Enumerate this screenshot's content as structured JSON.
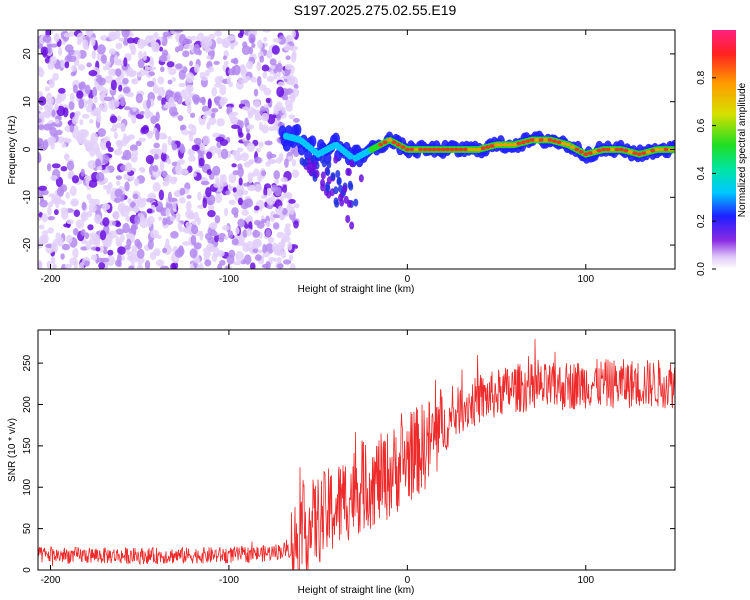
{
  "title": "S197.2025.275.02.55.E19",
  "colors": {
    "spectrogram_dots": "#8a2be2",
    "snr_line": "#ee2a2a",
    "axes": "#000000"
  },
  "chart_data": [
    {
      "type": "heatmap",
      "name": "spectrogram",
      "title": "",
      "xlabel": "Height of straight line (km)",
      "ylabel": "Frequency (Hz)",
      "xlim": [
        -207,
        150
      ],
      "ylim": [
        -25,
        25
      ],
      "xticks": [
        -200,
        -100,
        0,
        100
      ],
      "xtick_labels": [
        "-200",
        "-100",
        "0",
        "100"
      ],
      "yticks": [
        -20,
        -10,
        0,
        10,
        20
      ],
      "ytick_labels": [
        "-20",
        "-10",
        "0",
        "10",
        "20"
      ],
      "colorbar": {
        "label": "Normalized spectral amplitude",
        "range": [
          0,
          1
        ],
        "ticks": [
          0.0,
          0.2,
          0.4,
          0.6,
          0.8
        ],
        "tick_labels": [
          "0.0",
          "0.2",
          "0.4",
          "0.6",
          "0.8"
        ],
        "colormap": "rainbow"
      },
      "ridge": {
        "x": [
          -70,
          -60,
          -50,
          -40,
          -30,
          -20,
          -10,
          0,
          10,
          20,
          30,
          40,
          50,
          60,
          70,
          80,
          90,
          100,
          110,
          120,
          130,
          140,
          150
        ],
        "y": [
          3,
          2,
          -1,
          1,
          -2,
          0,
          2,
          0,
          0,
          0,
          0,
          0,
          1,
          1,
          2,
          2,
          1,
          -1,
          0,
          0,
          -1,
          0,
          0
        ]
      },
      "noise_region_x": [
        -207,
        -70
      ]
    },
    {
      "type": "line",
      "name": "snr",
      "title": "",
      "xlabel": "Height of straight line (km)",
      "ylabel": "SNR (10 * v/v)",
      "xlim": [
        -207,
        150
      ],
      "ylim": [
        0,
        290
      ],
      "xticks": [
        -200,
        -100,
        0,
        100
      ],
      "xtick_labels": [
        "-200",
        "-100",
        "0",
        "100"
      ],
      "yticks": [
        0,
        50,
        100,
        150,
        200,
        250
      ],
      "ytick_labels": [
        "0",
        "50",
        "100",
        "150",
        "200",
        "250"
      ],
      "series": [
        {
          "name": "SNR",
          "x": [
            -207,
            -150,
            -100,
            -80,
            -65,
            -60,
            -50,
            -40,
            -30,
            -20,
            -10,
            0,
            10,
            20,
            30,
            40,
            60,
            80,
            100,
            120,
            150
          ],
          "values": [
            18,
            17,
            18,
            20,
            25,
            45,
            60,
            75,
            95,
            105,
            115,
            135,
            150,
            170,
            195,
            205,
            220,
            220,
            225,
            225,
            225
          ]
        }
      ]
    }
  ]
}
